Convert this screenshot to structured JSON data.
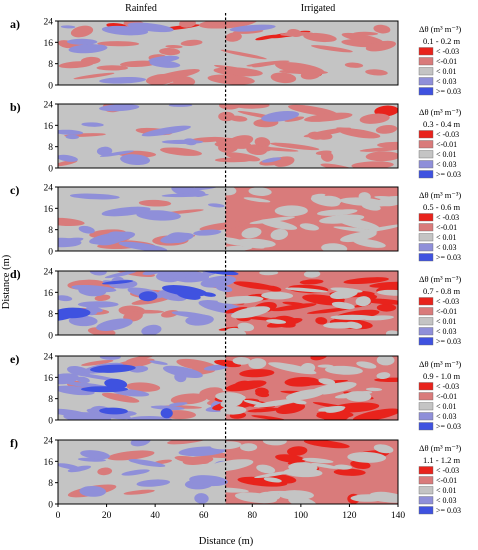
{
  "figure": {
    "top_labels": {
      "left": "Rainfed",
      "right": "Irrigated"
    },
    "xlabel": "Distance (m)",
    "ylabel": "Distance (m)",
    "divider_x_m": 69,
    "colors": {
      "lt_-0.03": "#e8231c",
      "lt_-0.01": "#d97b7b",
      "lt_0.01": "#c4c4c4",
      "lt_0.03": "#8f8fd9",
      "ge_0.03": "#3f52e0"
    },
    "legend": {
      "title": "Δθ (m³ m⁻³)",
      "classes": [
        "< -0.03",
        "<-0.01",
        "< 0.01",
        "< 0.03",
        ">= 0.03"
      ]
    }
  },
  "chart_data": [
    {
      "type": "heatmap",
      "panel": "a)",
      "depth": "0.1 - 0.2 m",
      "x_ticks": [
        0,
        20,
        40,
        60,
        80,
        100,
        120,
        140
      ],
      "y_ticks": [
        0,
        8,
        16,
        24
      ],
      "xlim": [
        0,
        140
      ],
      "ylim": [
        0,
        24
      ],
      "rainfed": {
        "lt_-0.03": 0.01,
        "lt_-0.01": 0.22,
        "lt_0.01": 0.66,
        "lt_0.03": 0.11,
        "ge_0.03": 0.0
      },
      "irrigated": {
        "lt_-0.03": 0.01,
        "lt_-0.01": 0.32,
        "lt_0.01": 0.66,
        "lt_0.03": 0.01,
        "ge_0.03": 0.0
      }
    },
    {
      "type": "heatmap",
      "panel": "b)",
      "depth": "0.3 - 0.4 m",
      "x_ticks": [
        0,
        20,
        40,
        60,
        80,
        100,
        120,
        140
      ],
      "y_ticks": [
        0,
        8,
        16,
        24
      ],
      "xlim": [
        0,
        140
      ],
      "ylim": [
        0,
        24
      ],
      "rainfed": {
        "lt_-0.03": 0.0,
        "lt_-0.01": 0.08,
        "lt_0.01": 0.82,
        "lt_0.03": 0.1,
        "ge_0.03": 0.0
      },
      "irrigated": {
        "lt_-0.03": 0.01,
        "lt_-0.01": 0.45,
        "lt_0.01": 0.53,
        "lt_0.03": 0.01,
        "ge_0.03": 0.0
      }
    },
    {
      "type": "heatmap",
      "panel": "c)",
      "depth": "0.5 - 0.6 m",
      "x_ticks": [
        0,
        20,
        40,
        60,
        80,
        100,
        120,
        140
      ],
      "y_ticks": [
        0,
        8,
        16,
        24
      ],
      "xlim": [
        0,
        140
      ],
      "ylim": [
        0,
        24
      ],
      "rainfed": {
        "lt_-0.03": 0.0,
        "lt_-0.01": 0.15,
        "lt_0.01": 0.58,
        "lt_0.03": 0.27,
        "ge_0.03": 0.0
      },
      "irrigated": {
        "lt_-0.03": 0.0,
        "lt_-0.01": 0.6,
        "lt_0.01": 0.4,
        "lt_0.03": 0.0,
        "ge_0.03": 0.0
      }
    },
    {
      "type": "heatmap",
      "panel": "d)",
      "depth": "0.7 - 0.8 m",
      "x_ticks": [
        0,
        20,
        40,
        60,
        80,
        100,
        120,
        140
      ],
      "y_ticks": [
        0,
        8,
        16,
        24
      ],
      "xlim": [
        0,
        140
      ],
      "ylim": [
        0,
        24
      ],
      "rainfed": {
        "lt_-0.03": 0.0,
        "lt_-0.01": 0.2,
        "lt_0.01": 0.35,
        "lt_0.03": 0.35,
        "ge_0.03": 0.1
      },
      "irrigated": {
        "lt_-0.03": 0.35,
        "lt_-0.01": 0.45,
        "lt_0.01": 0.2,
        "lt_0.03": 0.0,
        "ge_0.03": 0.0
      }
    },
    {
      "type": "heatmap",
      "panel": "e)",
      "depth": "0.9 - 1.0 m",
      "x_ticks": [
        0,
        20,
        40,
        60,
        80,
        100,
        120,
        140
      ],
      "y_ticks": [
        0,
        8,
        16,
        24
      ],
      "xlim": [
        0,
        140
      ],
      "ylim": [
        0,
        24
      ],
      "rainfed": {
        "lt_-0.03": 0.0,
        "lt_-0.01": 0.22,
        "lt_0.01": 0.4,
        "lt_0.03": 0.33,
        "ge_0.03": 0.05
      },
      "irrigated": {
        "lt_-0.03": 0.3,
        "lt_-0.01": 0.45,
        "lt_0.01": 0.25,
        "lt_0.03": 0.0,
        "ge_0.03": 0.0
      }
    },
    {
      "type": "heatmap",
      "panel": "f)",
      "depth": "1.1 - 1.2 m",
      "x_ticks": [
        0,
        20,
        40,
        60,
        80,
        100,
        120,
        140
      ],
      "y_ticks": [
        0,
        8,
        16,
        24
      ],
      "xlim": [
        0,
        140
      ],
      "ylim": [
        0,
        24
      ],
      "rainfed": {
        "lt_-0.03": 0.0,
        "lt_-0.01": 0.12,
        "lt_0.01": 0.7,
        "lt_0.03": 0.18,
        "ge_0.03": 0.0
      },
      "irrigated": {
        "lt_-0.03": 0.15,
        "lt_-0.01": 0.55,
        "lt_0.01": 0.3,
        "lt_0.03": 0.0,
        "ge_0.03": 0.0
      }
    }
  ]
}
